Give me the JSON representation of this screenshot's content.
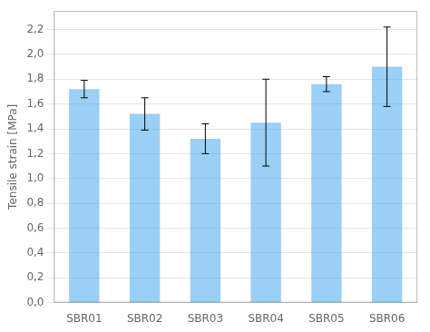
{
  "chart_data": {
    "type": "bar",
    "categories": [
      "SBR01",
      "SBR02",
      "SBR03",
      "SBR04",
      "SBR05",
      "SBR06"
    ],
    "values": [
      1.72,
      1.52,
      1.32,
      1.45,
      1.76,
      1.9
    ],
    "errors": [
      0.07,
      0.13,
      0.12,
      0.35,
      0.06,
      0.32
    ],
    "ylabel": "Tensile strain [MPa]",
    "ylim": [
      0.0,
      2.35
    ],
    "yticks": [
      {
        "value": 0.0,
        "label": "0,0"
      },
      {
        "value": 0.2,
        "label": "0,2"
      },
      {
        "value": 0.4,
        "label": "0,4"
      },
      {
        "value": 0.6,
        "label": "0,6"
      },
      {
        "value": 0.8,
        "label": "0,8"
      },
      {
        "value": 1.0,
        "label": "1,0"
      },
      {
        "value": 1.2,
        "label": "1,2"
      },
      {
        "value": 1.4,
        "label": "1,4"
      },
      {
        "value": 1.6,
        "label": "1,6"
      },
      {
        "value": 1.8,
        "label": "1,8"
      },
      {
        "value": 2.0,
        "label": "2,0"
      },
      {
        "value": 2.2,
        "label": "2,2"
      }
    ],
    "grid": true
  }
}
